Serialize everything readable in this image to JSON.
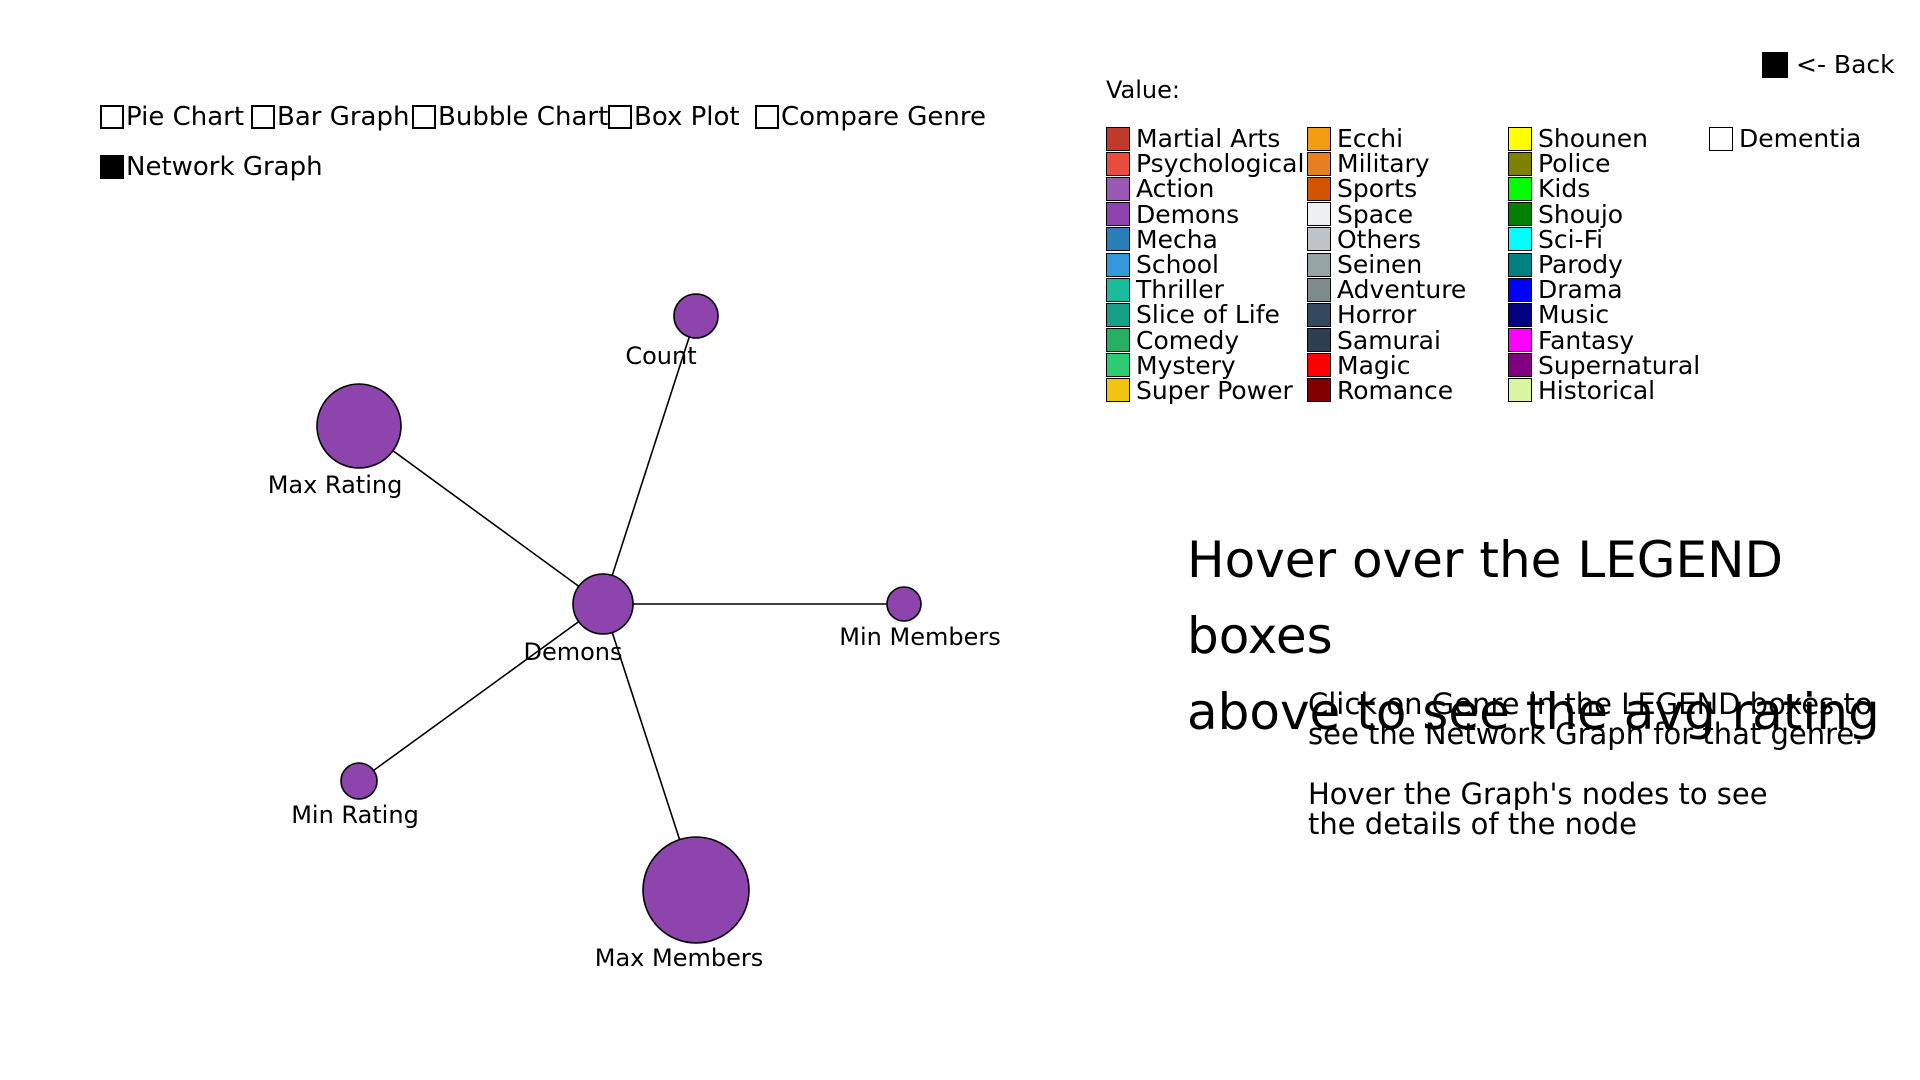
{
  "controls": {
    "back_label": "<- Back",
    "chart_options": [
      {
        "label": "Pie Chart",
        "checked": false
      },
      {
        "label": "Bar Graph",
        "checked": false
      },
      {
        "label": "Bubble Chart",
        "checked": false
      },
      {
        "label": "Box Plot",
        "checked": false
      },
      {
        "label": "Compare Genre",
        "checked": false
      },
      {
        "label": "Network Graph",
        "checked": true
      }
    ]
  },
  "legend": {
    "title": "Value:",
    "items": [
      {
        "label": "Martial Arts",
        "color": "#c0392b"
      },
      {
        "label": "Psychological",
        "color": "#e74c3c"
      },
      {
        "label": "Action",
        "color": "#9b59b6"
      },
      {
        "label": "Demons",
        "color": "#8e44ad"
      },
      {
        "label": "Mecha",
        "color": "#2980b9"
      },
      {
        "label": "School",
        "color": "#3498db"
      },
      {
        "label": "Thriller",
        "color": "#1abc9c"
      },
      {
        "label": "Slice of Life",
        "color": "#16a085"
      },
      {
        "label": "Comedy",
        "color": "#27ae60"
      },
      {
        "label": "Mystery",
        "color": "#2ecc71"
      },
      {
        "label": "Super Power",
        "color": "#f1c40f"
      },
      {
        "label": "Ecchi",
        "color": "#f39c12"
      },
      {
        "label": "Military",
        "color": "#e67e22"
      },
      {
        "label": "Sports",
        "color": "#d35400"
      },
      {
        "label": "Space",
        "color": "#ecf0f1"
      },
      {
        "label": "Others",
        "color": "#bdc3c7"
      },
      {
        "label": "Seinen",
        "color": "#95a5a6"
      },
      {
        "label": "Adventure",
        "color": "#7f8c8d"
      },
      {
        "label": "Horror",
        "color": "#34495e"
      },
      {
        "label": "Samurai",
        "color": "#2c3e50"
      },
      {
        "label": "Magic",
        "color": "#ff0000"
      },
      {
        "label": "Romance",
        "color": "#800000"
      },
      {
        "label": "Shounen",
        "color": "#ffff00"
      },
      {
        "label": "Police",
        "color": "#808000"
      },
      {
        "label": "Kids",
        "color": "#00ff00"
      },
      {
        "label": "Shoujo",
        "color": "#008000"
      },
      {
        "label": "Sci-Fi",
        "color": "#00ffff"
      },
      {
        "label": "Parody",
        "color": "#008080"
      },
      {
        "label": "Drama",
        "color": "#0000ff"
      },
      {
        "label": "Music",
        "color": "#000080"
      },
      {
        "label": "Fantasy",
        "color": "#ff00ff"
      },
      {
        "label": "Supernatural",
        "color": "#800080"
      },
      {
        "label": "Historical",
        "color": "#d8f5a2"
      },
      {
        "label": "Dementia",
        "color": "#ffffff"
      }
    ]
  },
  "hints": {
    "hover_line1": "Hover over the LEGEND boxes",
    "hover_line2": "above to see the avg rating",
    "click_line1": "Click on Genre in the LEGEND boxes to",
    "click_line2": "see the Network Graph for that genre.",
    "node_line1": "Hover the Graph's nodes to see",
    "node_line2": "the details of the node"
  },
  "network": {
    "node_color": "#8e44ad",
    "center": {
      "label": "Demons"
    },
    "nodes": [
      {
        "label": "Count"
      },
      {
        "label": "Max Rating"
      },
      {
        "label": "Min Members"
      },
      {
        "label": "Min Rating"
      },
      {
        "label": "Max Members"
      }
    ]
  }
}
